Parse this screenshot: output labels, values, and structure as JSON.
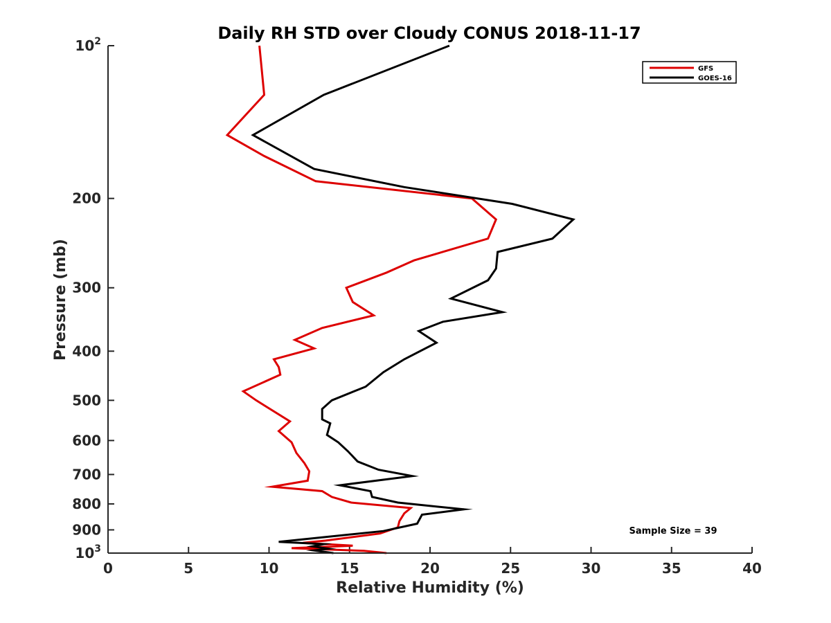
{
  "chart_data": {
    "type": "line",
    "title": "Daily RH STD over Cloudy CONUS 2018-11-17",
    "xlabel": "Relative Humidity (%)",
    "ylabel": "Pressure (mb)",
    "xlim": [
      0,
      40
    ],
    "ylim": [
      100,
      1000
    ],
    "y_scale": "log",
    "y_reversed": true,
    "grid": false,
    "legend_position": "top-right",
    "x_ticks": [
      {
        "value": 0,
        "label": "0"
      },
      {
        "value": 5,
        "label": "5"
      },
      {
        "value": 10,
        "label": "10"
      },
      {
        "value": 15,
        "label": "15"
      },
      {
        "value": 20,
        "label": "20"
      },
      {
        "value": 25,
        "label": "25"
      },
      {
        "value": 30,
        "label": "30"
      },
      {
        "value": 35,
        "label": "35"
      },
      {
        "value": 40,
        "label": "40"
      }
    ],
    "y_ticks": [
      {
        "value": 100,
        "label": "10",
        "sup": "2"
      },
      {
        "value": 200,
        "label": "200",
        "sup": ""
      },
      {
        "value": 300,
        "label": "300",
        "sup": ""
      },
      {
        "value": 400,
        "label": "400",
        "sup": ""
      },
      {
        "value": 500,
        "label": "500",
        "sup": ""
      },
      {
        "value": 600,
        "label": "600",
        "sup": ""
      },
      {
        "value": 700,
        "label": "700",
        "sup": ""
      },
      {
        "value": 800,
        "label": "800",
        "sup": ""
      },
      {
        "value": 900,
        "label": "900",
        "sup": ""
      },
      {
        "value": 1000,
        "label": "10",
        "sup": "3"
      }
    ],
    "series": [
      {
        "name": "GFS",
        "color": "#dd0000",
        "points": [
          [
            9.4,
            100
          ],
          [
            9.7,
            125
          ],
          [
            7.4,
            150
          ],
          [
            9.7,
            165
          ],
          [
            12.9,
            185
          ],
          [
            22.6,
            200
          ],
          [
            24.1,
            220
          ],
          [
            23.6,
            240
          ],
          [
            19.0,
            265
          ],
          [
            17.3,
            280
          ],
          [
            14.8,
            300
          ],
          [
            15.2,
            320
          ],
          [
            16.5,
            340
          ],
          [
            13.3,
            360
          ],
          [
            11.6,
            380
          ],
          [
            12.8,
            395
          ],
          [
            10.3,
            415
          ],
          [
            10.6,
            430
          ],
          [
            10.7,
            445
          ],
          [
            8.4,
            480
          ],
          [
            9.2,
            500
          ],
          [
            11.3,
            550
          ],
          [
            10.6,
            575
          ],
          [
            11.4,
            605
          ],
          [
            11.7,
            635
          ],
          [
            12.2,
            665
          ],
          [
            12.5,
            690
          ],
          [
            12.4,
            720
          ],
          [
            10.2,
            740
          ],
          [
            13.3,
            755
          ],
          [
            13.9,
            775
          ],
          [
            15.1,
            795
          ],
          [
            18.8,
            815
          ],
          [
            18.4,
            835
          ],
          [
            18.1,
            865
          ],
          [
            18.0,
            890
          ],
          [
            16.9,
            915
          ],
          [
            13.5,
            945
          ],
          [
            12.1,
            955
          ],
          [
            15.2,
            967
          ],
          [
            11.4,
            978
          ],
          [
            15.9,
            990
          ],
          [
            17.3,
            1000
          ]
        ]
      },
      {
        "name": "GOES-16",
        "color": "#000000",
        "points": [
          [
            21.2,
            100
          ],
          [
            13.4,
            125
          ],
          [
            9.0,
            150
          ],
          [
            12.8,
            175
          ],
          [
            18.4,
            190
          ],
          [
            25.1,
            205
          ],
          [
            28.9,
            220
          ],
          [
            27.6,
            240
          ],
          [
            24.2,
            255
          ],
          [
            24.1,
            275
          ],
          [
            23.6,
            290
          ],
          [
            21.3,
            315
          ],
          [
            24.5,
            335
          ],
          [
            20.8,
            350
          ],
          [
            19.3,
            365
          ],
          [
            20.4,
            385
          ],
          [
            18.4,
            415
          ],
          [
            17.1,
            440
          ],
          [
            16.0,
            470
          ],
          [
            13.9,
            500
          ],
          [
            13.3,
            520
          ],
          [
            13.3,
            545
          ],
          [
            13.8,
            555
          ],
          [
            13.6,
            585
          ],
          [
            14.3,
            605
          ],
          [
            14.9,
            630
          ],
          [
            15.5,
            660
          ],
          [
            16.8,
            685
          ],
          [
            18.9,
            705
          ],
          [
            14.4,
            735
          ],
          [
            16.3,
            755
          ],
          [
            16.4,
            775
          ],
          [
            18.0,
            795
          ],
          [
            22.1,
            820
          ],
          [
            19.5,
            840
          ],
          [
            19.2,
            875
          ],
          [
            17.1,
            905
          ],
          [
            10.6,
            950
          ],
          [
            13.4,
            960
          ],
          [
            12.7,
            970
          ],
          [
            13.7,
            980
          ],
          [
            12.8,
            988
          ],
          [
            14.0,
            1000
          ]
        ]
      }
    ],
    "annotation": "Sample Size = 39"
  }
}
